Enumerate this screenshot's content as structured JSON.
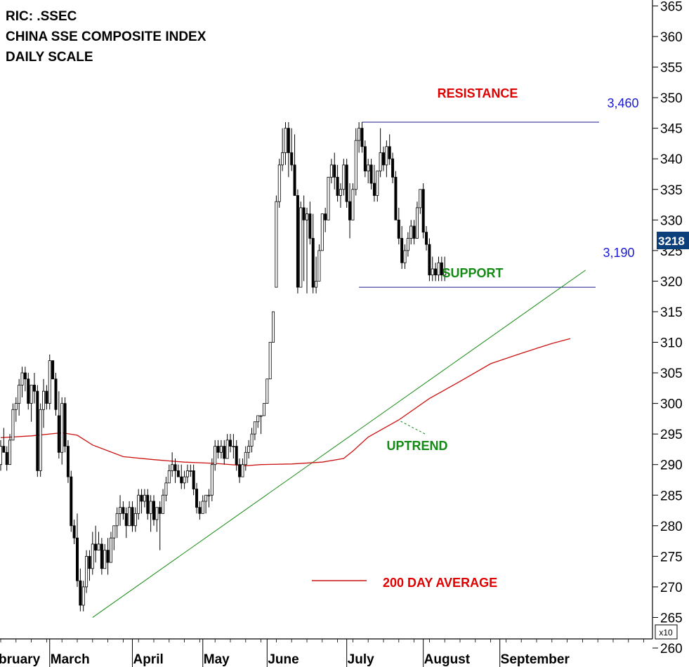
{
  "header": {
    "ric": "RIC: .SSEC",
    "name": "CHINA SSE COMPOSITE INDEX",
    "scale": "DAILY SCALE"
  },
  "annotations": {
    "resistance_label": "RESISTANCE",
    "resistance_value": "3,460",
    "support_label": "SUPPORT",
    "support_value": "3,190",
    "uptrend_label": "UPTREND",
    "legend_label": "200 DAY AVERAGE",
    "last_price": "3218",
    "multiplier": "x10"
  },
  "colors": {
    "resistance": "#e00000",
    "support": "#138a13",
    "level_value": "#1a1ad6",
    "trendline": "#138a13",
    "moving_average": "#cc1111",
    "candle": "#000000",
    "badge_bg": "#0d3f7a"
  },
  "chart_data": {
    "type": "candlestick",
    "y_axis": {
      "ticks": [
        "365",
        "360",
        "355",
        "350",
        "345",
        "340",
        "335",
        "330",
        "325",
        "320",
        "315",
        "310",
        "305",
        "300",
        "295",
        "290",
        "285",
        "280",
        "275",
        "270",
        "265",
        "260"
      ],
      "range": [
        260,
        367
      ],
      "multiplier": "x10",
      "side": "right"
    },
    "x_axis": {
      "months": [
        "February",
        "March",
        "April",
        "May",
        "June",
        "July",
        "August",
        "September"
      ],
      "month_labels": [
        "bruary",
        "March",
        "April",
        "May",
        "June",
        "July",
        "August",
        "September"
      ],
      "month_start_day": [
        0,
        16,
        43,
        66,
        87,
        113,
        138,
        163
      ]
    },
    "levels": {
      "resistance": 346.0,
      "support": 319.0
    },
    "trendline": {
      "from": {
        "day": 30,
        "value": 265.0
      },
      "to": {
        "day": 191,
        "value": 321.8
      }
    },
    "uptrend_pointer": {
      "day": 131,
      "value": 299.0
    },
    "moving_average_200": {
      "name": "200 DAY AVERAGE",
      "points": [
        [
          0,
          294.4
        ],
        [
          10,
          294.7
        ],
        [
          20,
          295.2
        ],
        [
          25,
          294.8
        ],
        [
          30,
          293.2
        ],
        [
          40,
          291.3
        ],
        [
          50,
          290.8
        ],
        [
          60,
          290.4
        ],
        [
          70,
          290.2
        ],
        [
          80,
          289.8
        ],
        [
          85,
          290.0
        ],
        [
          95,
          290.1
        ],
        [
          105,
          290.4
        ],
        [
          112,
          291.0
        ],
        [
          115,
          292.2
        ],
        [
          120,
          294.5
        ],
        [
          130,
          297.3
        ],
        [
          140,
          300.8
        ],
        [
          150,
          303.6
        ],
        [
          160,
          306.5
        ],
        [
          170,
          308.2
        ],
        [
          180,
          309.8
        ],
        [
          186,
          310.6
        ]
      ]
    },
    "candles": [
      [
        290,
        294,
        289,
        293
      ],
      [
        293,
        296,
        292,
        292
      ],
      [
        292,
        293,
        289,
        290
      ],
      [
        290,
        295,
        290,
        294
      ],
      [
        294,
        300,
        294,
        299
      ],
      [
        299,
        301,
        297,
        300
      ],
      [
        300,
        304,
        298,
        303
      ],
      [
        303,
        306,
        301,
        305
      ],
      [
        305,
        306,
        302,
        304
      ],
      [
        304,
        305,
        299,
        300
      ],
      [
        300,
        303,
        297,
        303
      ],
      [
        303,
        305,
        300,
        302
      ],
      [
        302,
        303,
        288,
        289
      ],
      [
        289,
        300,
        288,
        299
      ],
      [
        299,
        304,
        296,
        302
      ],
      [
        302,
        303,
        299,
        300
      ],
      [
        300,
        308,
        299,
        307
      ],
      [
        307,
        307,
        304,
        304
      ],
      [
        304,
        305,
        298,
        299
      ],
      [
        298,
        302,
        291,
        292
      ],
      [
        292,
        301,
        290,
        300
      ],
      [
        300,
        301,
        292,
        293
      ],
      [
        293,
        294,
        287,
        288
      ],
      [
        288,
        289,
        279,
        280
      ],
      [
        280,
        281,
        277,
        278
      ],
      [
        278,
        282,
        270,
        271
      ],
      [
        271,
        273,
        266,
        267
      ],
      [
        267,
        271,
        266,
        270
      ],
      [
        270,
        276,
        269,
        275
      ],
      [
        275,
        276,
        271,
        273
      ],
      [
        273,
        279,
        272,
        277
      ],
      [
        277,
        280,
        274,
        276
      ],
      [
        276,
        279,
        276,
        277
      ],
      [
        277,
        278,
        272,
        273
      ],
      [
        273,
        277,
        273,
        276
      ],
      [
        276,
        278,
        272,
        274
      ],
      [
        274,
        279,
        274,
        278
      ],
      [
        278,
        280,
        276,
        280
      ],
      [
        280,
        283,
        278,
        282
      ],
      [
        282,
        285,
        280,
        283
      ],
      [
        283,
        284,
        281,
        282
      ],
      [
        282,
        283,
        278,
        280
      ],
      [
        280,
        284,
        280,
        283
      ],
      [
        283,
        284,
        279,
        280
      ],
      [
        280,
        283,
        279,
        282
      ],
      [
        282,
        286,
        281,
        285
      ],
      [
        285,
        286,
        282,
        284
      ],
      [
        284,
        286,
        283,
        285
      ],
      [
        285,
        286,
        281,
        282
      ],
      [
        282,
        285,
        279,
        284
      ],
      [
        284,
        285,
        280,
        281
      ],
      [
        281,
        283,
        279,
        283
      ],
      [
        283,
        284,
        276,
        282
      ],
      [
        282,
        286,
        282,
        285
      ],
      [
        285,
        288,
        284,
        287
      ],
      [
        287,
        290,
        287,
        289
      ],
      [
        289,
        292,
        288,
        290
      ],
      [
        290,
        291,
        287,
        289
      ],
      [
        289,
        290,
        288,
        288
      ],
      [
        288,
        290,
        286,
        287
      ],
      [
        287,
        289,
        286,
        288
      ],
      [
        288,
        290,
        287,
        289
      ],
      [
        289,
        290,
        288,
        289
      ],
      [
        289,
        290,
        285,
        286
      ],
      [
        286,
        287,
        282,
        283
      ],
      [
        283,
        284,
        281,
        282
      ],
      [
        282,
        285,
        282,
        284
      ],
      [
        284,
        285,
        282,
        285
      ],
      [
        285,
        286,
        283,
        285
      ],
      [
        285,
        291,
        284,
        290
      ],
      [
        290,
        294,
        289,
        293
      ],
      [
        293,
        294,
        291,
        292
      ],
      [
        292,
        294,
        291,
        293
      ],
      [
        293,
        294,
        290,
        291
      ],
      [
        291,
        295,
        291,
        294
      ],
      [
        294,
        295,
        292,
        293
      ],
      [
        293,
        295,
        291,
        293
      ],
      [
        293,
        294,
        289,
        290
      ],
      [
        290,
        291,
        287,
        288
      ],
      [
        288,
        291,
        288,
        290
      ],
      [
        290,
        293,
        289,
        292
      ],
      [
        292,
        294,
        291,
        293
      ],
      [
        293,
        296,
        292,
        295
      ],
      [
        295,
        297,
        294,
        297
      ],
      [
        297,
        298,
        296,
        298
      ],
      [
        298,
        298,
        295,
        298
      ],
      [
        298,
        300,
        298,
        300
      ],
      [
        300,
        304,
        300,
        304
      ],
      [
        304,
        310,
        304,
        310
      ],
      [
        310,
        315,
        310,
        315
      ],
      [
        319,
        334,
        319,
        333
      ],
      [
        333,
        340,
        332,
        339
      ],
      [
        339,
        345,
        338,
        341
      ],
      [
        341,
        346,
        339,
        345
      ],
      [
        345,
        346,
        337,
        341
      ],
      [
        341,
        345,
        338,
        339
      ],
      [
        339,
        344,
        334,
        334
      ],
      [
        334,
        335,
        318,
        319
      ],
      [
        319,
        333,
        319,
        332
      ],
      [
        332,
        334,
        320,
        330
      ],
      [
        330,
        332,
        318,
        331
      ],
      [
        331,
        333,
        326,
        327
      ],
      [
        327,
        331,
        318,
        319
      ],
      [
        319,
        324,
        318,
        320
      ],
      [
        320,
        326,
        320,
        325
      ],
      [
        325,
        331,
        325,
        331
      ],
      [
        331,
        332,
        328,
        330
      ],
      [
        330,
        337,
        330,
        337
      ],
      [
        337,
        340,
        336,
        339
      ],
      [
        339,
        341,
        335,
        337
      ],
      [
        337,
        339,
        333,
        334
      ],
      [
        334,
        336,
        332,
        335
      ],
      [
        335,
        340,
        334,
        339
      ],
      [
        339,
        340,
        332,
        333
      ],
      [
        333,
        336,
        327,
        330
      ],
      [
        330,
        336,
        330,
        335
      ],
      [
        335,
        345,
        334,
        343
      ],
      [
        343,
        346,
        341,
        345
      ],
      [
        345,
        346,
        341,
        342
      ],
      [
        342,
        343,
        337,
        338
      ],
      [
        338,
        340,
        336,
        339
      ],
      [
        339,
        340,
        335,
        336
      ],
      [
        336,
        339,
        333,
        334
      ],
      [
        334,
        338,
        333,
        338
      ],
      [
        338,
        345,
        337,
        341
      ],
      [
        341,
        342,
        338,
        339
      ],
      [
        339,
        343,
        337,
        342
      ],
      [
        342,
        344,
        339,
        340
      ],
      [
        340,
        341,
        336,
        337
      ],
      [
        337,
        338,
        330,
        330
      ],
      [
        330,
        332,
        326,
        327
      ],
      [
        327,
        329,
        322,
        323
      ],
      [
        323,
        326,
        322,
        325
      ],
      [
        325,
        328,
        324,
        327
      ],
      [
        327,
        330,
        326,
        329
      ],
      [
        329,
        330,
        326,
        327
      ],
      [
        327,
        333,
        327,
        332
      ],
      [
        332,
        335,
        331,
        335
      ],
      [
        335,
        336,
        327,
        328
      ],
      [
        328,
        329,
        325,
        326
      ],
      [
        326,
        327,
        320,
        321
      ],
      [
        321,
        324,
        320,
        322
      ],
      [
        322,
        323,
        320,
        321
      ],
      [
        321,
        324,
        320,
        323
      ],
      [
        323,
        324,
        320,
        321
      ],
      [
        321,
        324,
        320,
        322
      ]
    ]
  }
}
